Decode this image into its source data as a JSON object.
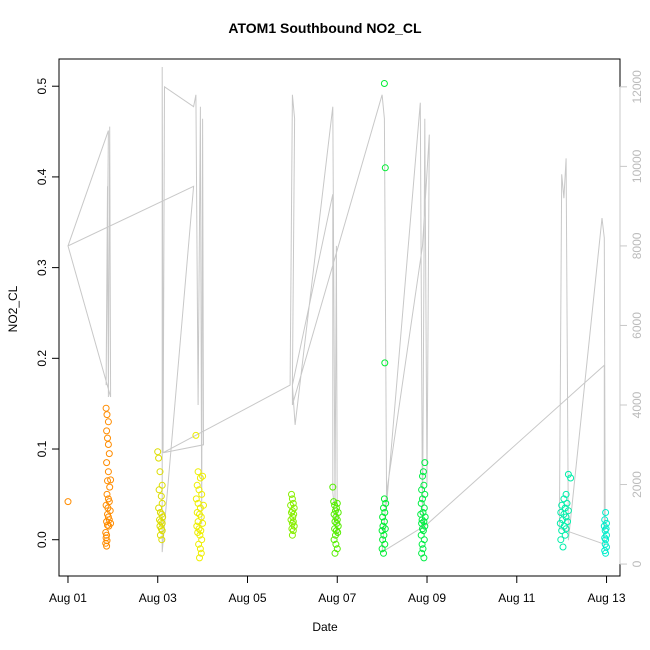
{
  "chart_data": {
    "type": "scatter",
    "title": "ATOM1 Southbound NO2_CL",
    "xlabel": "Date",
    "ylabel": "NO2_CL",
    "x_ticks": [
      "Aug 01",
      "Aug 03",
      "Aug 05",
      "Aug 07",
      "Aug 09",
      "Aug 11",
      "Aug 13"
    ],
    "x_tick_days": [
      1,
      3,
      5,
      7,
      9,
      11,
      13
    ],
    "xlim_days": [
      0.8,
      13.3
    ],
    "y_ticks": [
      "0.0",
      "0.1",
      "0.2",
      "0.3",
      "0.4",
      "0.5"
    ],
    "y_tick_values": [
      0.0,
      0.1,
      0.2,
      0.3,
      0.4,
      0.5
    ],
    "ylim": [
      -0.04,
      0.53
    ],
    "y2_ticks": [
      "0",
      "2000",
      "4000",
      "6000",
      "8000",
      "10000",
      "12000"
    ],
    "y2_tick_values": [
      0,
      2000,
      4000,
      6000,
      8000,
      10000,
      12000
    ],
    "y2lim": [
      -300,
      12700
    ],
    "line_color": "#c8c8c8",
    "grey_line": [
      [
        1.0,
        8000
      ],
      [
        1.9,
        10900
      ],
      [
        1.85,
        4500
      ],
      [
        1.88,
        9500
      ],
      [
        1.9,
        4200
      ],
      [
        1.93,
        11000
      ],
      [
        1.95,
        4200
      ],
      [
        1.0,
        8000
      ],
      [
        3.8,
        9500
      ],
      [
        3.1,
        300
      ],
      [
        3.1,
        12500
      ],
      [
        3.12,
        2800
      ],
      [
        3.15,
        12000
      ],
      [
        3.8,
        11500
      ],
      [
        3.85,
        11800
      ],
      [
        3.9,
        4000
      ],
      [
        3.95,
        11500
      ],
      [
        3.98,
        1000
      ],
      [
        4.0,
        11200
      ],
      [
        4.02,
        3000
      ],
      [
        3.12,
        2800
      ],
      [
        5.95,
        4500
      ],
      [
        6.0,
        11800
      ],
      [
        6.05,
        11200
      ],
      [
        6.0,
        4500
      ],
      [
        6.06,
        3500
      ],
      [
        6.9,
        11500
      ],
      [
        6.95,
        1500
      ],
      [
        6.98,
        8000
      ],
      [
        7.0,
        700
      ],
      [
        6.9,
        1800
      ],
      [
        6.9,
        9300
      ],
      [
        6.0,
        4500
      ],
      [
        6.0,
        4000
      ],
      [
        8.0,
        11800
      ],
      [
        8.05,
        11200
      ],
      [
        8.1,
        1500
      ],
      [
        8.85,
        11600
      ],
      [
        8.9,
        1000
      ],
      [
        8.95,
        11200
      ],
      [
        9.0,
        2000
      ],
      [
        9.05,
        10800
      ],
      [
        8.9,
        8000
      ],
      [
        8.1,
        1800
      ],
      [
        8.0,
        300
      ],
      [
        9.0,
        1000
      ],
      [
        12.95,
        5000
      ],
      [
        12.95,
        500
      ],
      [
        11.95,
        900
      ],
      [
        12.0,
        9800
      ],
      [
        12.05,
        9200
      ],
      [
        12.1,
        10200
      ],
      [
        12.15,
        600
      ],
      [
        12.9,
        8700
      ],
      [
        12.95,
        8200
      ],
      [
        12.97,
        900
      ]
    ],
    "series": [
      {
        "color": "#ff8c00",
        "points": [
          [
            1.0,
            0.042
          ],
          [
            1.85,
            0.145
          ],
          [
            1.87,
            0.138
          ],
          [
            1.9,
            0.13
          ],
          [
            1.86,
            0.12
          ],
          [
            1.88,
            0.112
          ],
          [
            1.9,
            0.105
          ],
          [
            1.92,
            0.095
          ],
          [
            1.86,
            0.085
          ],
          [
            1.9,
            0.075
          ],
          [
            1.95,
            0.066
          ],
          [
            1.88,
            0.065
          ],
          [
            1.93,
            0.058
          ],
          [
            1.87,
            0.05
          ],
          [
            1.9,
            0.045
          ],
          [
            1.92,
            0.042
          ],
          [
            1.85,
            0.038
          ],
          [
            1.89,
            0.035
          ],
          [
            1.94,
            0.032
          ],
          [
            1.88,
            0.028
          ],
          [
            1.9,
            0.025
          ],
          [
            1.92,
            0.022
          ],
          [
            1.86,
            0.02
          ],
          [
            1.95,
            0.018
          ],
          [
            1.88,
            0.016
          ],
          [
            1.91,
            0.015
          ],
          [
            1.84,
            0.008
          ],
          [
            1.86,
            0.005
          ],
          [
            1.85,
            0.002
          ],
          [
            1.87,
            -0.001
          ],
          [
            1.84,
            -0.004
          ],
          [
            1.86,
            -0.007
          ]
        ]
      },
      {
        "color": "#dddd00",
        "points": [
          [
            3.0,
            0.097
          ],
          [
            3.02,
            0.09
          ],
          [
            3.05,
            0.075
          ],
          [
            3.1,
            0.06
          ],
          [
            3.03,
            0.055
          ],
          [
            3.08,
            0.048
          ],
          [
            3.1,
            0.04
          ],
          [
            3.02,
            0.035
          ],
          [
            3.06,
            0.03
          ],
          [
            3.09,
            0.028
          ],
          [
            3.11,
            0.025
          ],
          [
            3.04,
            0.022
          ],
          [
            3.07,
            0.02
          ],
          [
            3.1,
            0.018
          ],
          [
            3.05,
            0.015
          ],
          [
            3.08,
            0.012
          ],
          [
            3.1,
            0.01
          ],
          [
            3.06,
            0.005
          ],
          [
            3.09,
            0.0
          ]
        ]
      },
      {
        "color": "#eeee00",
        "points": [
          [
            3.85,
            0.115
          ],
          [
            3.9,
            0.075
          ],
          [
            4.0,
            0.07
          ],
          [
            3.95,
            0.068
          ],
          [
            3.88,
            0.06
          ],
          [
            3.92,
            0.055
          ],
          [
            3.98,
            0.05
          ],
          [
            3.86,
            0.045
          ],
          [
            3.9,
            0.04
          ],
          [
            4.02,
            0.038
          ],
          [
            3.95,
            0.035
          ],
          [
            3.88,
            0.03
          ],
          [
            3.93,
            0.028
          ],
          [
            3.97,
            0.025
          ],
          [
            3.9,
            0.02
          ],
          [
            4.0,
            0.018
          ],
          [
            3.87,
            0.015
          ],
          [
            3.92,
            0.012
          ],
          [
            3.96,
            0.01
          ],
          [
            3.89,
            0.008
          ],
          [
            3.94,
            0.005
          ],
          [
            3.98,
            0.0
          ],
          [
            3.91,
            -0.005
          ],
          [
            3.95,
            -0.01
          ],
          [
            3.97,
            -0.015
          ],
          [
            3.93,
            -0.02
          ]
        ]
      },
      {
        "color": "#88ee00",
        "points": [
          [
            5.98,
            0.05
          ],
          [
            6.0,
            0.045
          ],
          [
            6.02,
            0.04
          ],
          [
            5.96,
            0.038
          ],
          [
            6.04,
            0.035
          ],
          [
            6.0,
            0.032
          ],
          [
            5.98,
            0.03
          ],
          [
            6.03,
            0.028
          ],
          [
            6.01,
            0.025
          ],
          [
            5.97,
            0.022
          ],
          [
            6.02,
            0.02
          ],
          [
            6.0,
            0.018
          ],
          [
            6.04,
            0.015
          ],
          [
            5.99,
            0.012
          ],
          [
            6.02,
            0.01
          ],
          [
            6.0,
            0.005
          ]
        ]
      },
      {
        "color": "#55ee00",
        "points": [
          [
            6.9,
            0.058
          ],
          [
            6.92,
            0.042
          ],
          [
            7.0,
            0.04
          ],
          [
            6.94,
            0.038
          ],
          [
            6.98,
            0.035
          ],
          [
            6.96,
            0.032
          ],
          [
            7.02,
            0.03
          ],
          [
            6.93,
            0.028
          ],
          [
            6.97,
            0.025
          ],
          [
            7.0,
            0.022
          ],
          [
            6.95,
            0.02
          ],
          [
            6.99,
            0.018
          ],
          [
            7.02,
            0.015
          ],
          [
            6.94,
            0.012
          ],
          [
            6.98,
            0.01
          ],
          [
            7.01,
            0.008
          ],
          [
            6.96,
            0.005
          ],
          [
            6.93,
            0.0
          ],
          [
            6.97,
            -0.005
          ],
          [
            7.0,
            -0.01
          ],
          [
            6.95,
            -0.015
          ]
        ]
      },
      {
        "color": "#00ee33",
        "points": [
          [
            8.05,
            0.503
          ],
          [
            8.07,
            0.41
          ],
          [
            8.06,
            0.195
          ],
          [
            8.05,
            0.045
          ],
          [
            8.08,
            0.04
          ],
          [
            8.03,
            0.035
          ],
          [
            8.06,
            0.03
          ],
          [
            8.01,
            0.025
          ],
          [
            8.05,
            0.02
          ],
          [
            8.02,
            0.015
          ],
          [
            8.07,
            0.012
          ],
          [
            8.0,
            0.01
          ],
          [
            8.04,
            0.005
          ],
          [
            8.01,
            0.0
          ],
          [
            8.06,
            -0.005
          ],
          [
            8.0,
            -0.01
          ],
          [
            8.03,
            -0.015
          ]
        ]
      },
      {
        "color": "#00ee44",
        "points": [
          [
            8.95,
            0.085
          ],
          [
            8.92,
            0.075
          ],
          [
            8.9,
            0.07
          ],
          [
            8.93,
            0.06
          ],
          [
            8.88,
            0.055
          ],
          [
            8.95,
            0.05
          ],
          [
            8.9,
            0.045
          ],
          [
            8.87,
            0.04
          ],
          [
            8.94,
            0.035
          ],
          [
            8.91,
            0.03
          ],
          [
            8.86,
            0.028
          ],
          [
            8.96,
            0.025
          ],
          [
            8.89,
            0.022
          ],
          [
            8.93,
            0.02
          ],
          [
            8.88,
            0.018
          ],
          [
            8.95,
            0.015
          ],
          [
            8.9,
            0.012
          ],
          [
            8.92,
            0.01
          ],
          [
            8.87,
            0.005
          ],
          [
            8.94,
            0.0
          ],
          [
            8.89,
            -0.005
          ],
          [
            8.91,
            -0.01
          ],
          [
            8.88,
            -0.015
          ],
          [
            8.93,
            -0.02
          ]
        ]
      },
      {
        "color": "#00eeaa",
        "points": [
          [
            12.15,
            0.072
          ],
          [
            12.2,
            0.068
          ],
          [
            12.1,
            0.05
          ],
          [
            12.05,
            0.045
          ],
          [
            12.12,
            0.04
          ],
          [
            12.0,
            0.038
          ],
          [
            12.08,
            0.035
          ],
          [
            12.15,
            0.032
          ],
          [
            11.98,
            0.03
          ],
          [
            12.05,
            0.028
          ],
          [
            12.1,
            0.025
          ],
          [
            12.02,
            0.022
          ],
          [
            12.13,
            0.02
          ],
          [
            11.97,
            0.018
          ],
          [
            12.06,
            0.015
          ],
          [
            12.1,
            0.012
          ],
          [
            12.0,
            0.01
          ],
          [
            12.08,
            0.005
          ],
          [
            11.98,
            0.0
          ],
          [
            12.03,
            -0.008
          ]
        ]
      },
      {
        "color": "#00eecc",
        "points": [
          [
            12.98,
            0.03
          ],
          [
            12.96,
            0.022
          ],
          [
            13.0,
            0.018
          ],
          [
            12.95,
            0.015
          ],
          [
            12.99,
            0.012
          ],
          [
            12.97,
            0.01
          ],
          [
            13.0,
            0.005
          ],
          [
            12.96,
            0.002
          ],
          [
            12.98,
            0.0
          ],
          [
            12.97,
            -0.005
          ],
          [
            13.0,
            -0.008
          ],
          [
            12.96,
            -0.012
          ],
          [
            12.98,
            -0.015
          ]
        ]
      }
    ]
  }
}
